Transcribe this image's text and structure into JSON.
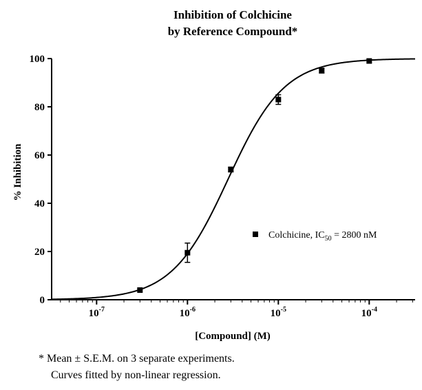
{
  "chart_data": {
    "type": "scatter",
    "title": [
      "Inhibition of  Colchicine",
      "by Reference Compound*"
    ],
    "xlabel": "[Compound] (M)",
    "ylabel": "% Inhibition",
    "x_scale": "log",
    "xlim": [
      3.2e-08,
      0.00032
    ],
    "ylim": [
      0,
      100
    ],
    "x_ticks": [
      {
        "value": 1e-07,
        "base": "10",
        "exp": "-7"
      },
      {
        "value": 1e-06,
        "base": "10",
        "exp": "-6"
      },
      {
        "value": 1e-05,
        "base": "10",
        "exp": "-5"
      },
      {
        "value": 0.0001,
        "base": "10",
        "exp": "-4"
      }
    ],
    "y_ticks": [
      0,
      20,
      40,
      60,
      80,
      100
    ],
    "series": [
      {
        "name": "Colchicine",
        "x": [
          3e-07,
          1e-06,
          3e-06,
          1e-05,
          3e-05,
          0.0001
        ],
        "y": [
          4,
          19.5,
          54,
          83,
          95,
          99
        ],
        "error": [
          0,
          4,
          1,
          2,
          1,
          0
        ]
      }
    ],
    "fit": {
      "model": "sigmoid",
      "ic50": 2.8e-06,
      "hill": 1.4,
      "bottom": 0,
      "top": 100
    },
    "legend": {
      "position": "right",
      "label": "Colchicine, IC",
      "sub": "50",
      "suffix": " = 2800 nM"
    },
    "grid": false
  },
  "footnote": {
    "line1": "* Mean ± S.E.M. on 3 separate experiments.",
    "line2": "Curves fitted by non-linear regression."
  }
}
